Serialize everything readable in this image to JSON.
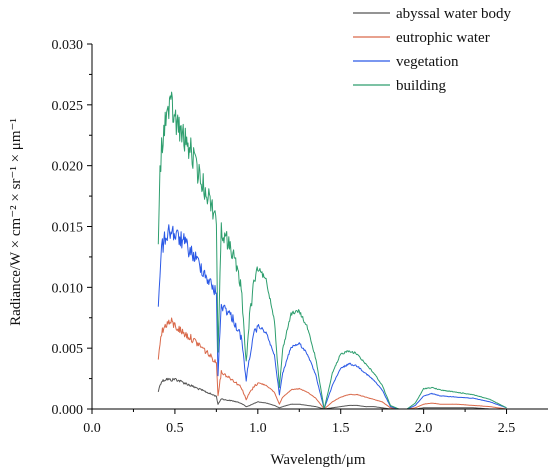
{
  "chart_data": {
    "type": "line",
    "xlabel": "Wavelength/μm",
    "ylabel": "Radiance/W × cm⁻² × sr⁻¹ × μm⁻¹",
    "xlim": [
      0.0,
      2.75
    ],
    "ylim": [
      0.0,
      0.03
    ],
    "xticks": [
      "0.0",
      "0.5",
      "1.0",
      "1.5",
      "2.0",
      "2.5"
    ],
    "yticks": [
      "0.000",
      "0.005",
      "0.010",
      "0.015",
      "0.020",
      "0.025",
      "0.030"
    ],
    "legend_position": "top-right",
    "grid": false,
    "x": [
      0.4,
      0.41,
      0.42,
      0.45,
      0.48,
      0.5,
      0.55,
      0.6,
      0.65,
      0.7,
      0.75,
      0.76,
      0.78,
      0.8,
      0.85,
      0.9,
      0.93,
      0.95,
      0.98,
      1.0,
      1.05,
      1.1,
      1.13,
      1.15,
      1.2,
      1.25,
      1.3,
      1.35,
      1.4,
      1.45,
      1.5,
      1.55,
      1.6,
      1.65,
      1.7,
      1.75,
      1.8,
      1.85,
      1.9,
      1.95,
      2.0,
      2.05,
      2.1,
      2.2,
      2.3,
      2.4,
      2.5
    ],
    "series": [
      {
        "name": "abyssal water body",
        "color": "#555555",
        "values": [
          0.0015,
          0.0021,
          0.0024,
          0.0026,
          0.0025,
          0.0026,
          0.0023,
          0.002,
          0.0017,
          0.0014,
          0.0011,
          0.0004,
          0.0009,
          0.0008,
          0.0007,
          0.0005,
          0.0002,
          0.0003,
          0.0005,
          0.0006,
          0.0005,
          0.0003,
          0.0001,
          0.0002,
          0.0004,
          0.0004,
          0.0003,
          0.0002,
          0.0,
          0.0001,
          0.0002,
          0.0003,
          0.0003,
          0.0002,
          0.0002,
          0.0001,
          0.0,
          0.0,
          0.0,
          0.0,
          0.0001,
          0.0001,
          0.0001,
          0.0001,
          0.0001,
          0.0,
          0.0
        ]
      },
      {
        "name": "eutrophic water",
        "color": "#d9694a",
        "values": [
          0.0045,
          0.0058,
          0.0066,
          0.0074,
          0.0075,
          0.0072,
          0.0066,
          0.0061,
          0.0055,
          0.0048,
          0.004,
          0.0012,
          0.0032,
          0.003,
          0.0025,
          0.0019,
          0.0008,
          0.0014,
          0.002,
          0.0022,
          0.002,
          0.0014,
          0.0004,
          0.001,
          0.0016,
          0.0017,
          0.0014,
          0.0009,
          0.0,
          0.0006,
          0.001,
          0.0012,
          0.0012,
          0.001,
          0.0008,
          0.0006,
          0.0001,
          0.0,
          0.0,
          0.0001,
          0.0004,
          0.0005,
          0.0004,
          0.0004,
          0.0003,
          0.0002,
          0.0
        ]
      },
      {
        "name": "vegetation",
        "color": "#2b59e6",
        "values": [
          0.0085,
          0.012,
          0.0138,
          0.0152,
          0.0155,
          0.015,
          0.0145,
          0.0135,
          0.0125,
          0.0112,
          0.01,
          0.003,
          0.009,
          0.0088,
          0.0078,
          0.0062,
          0.0025,
          0.0045,
          0.0066,
          0.007,
          0.0064,
          0.0045,
          0.0012,
          0.003,
          0.0052,
          0.0055,
          0.0046,
          0.0028,
          0.0,
          0.002,
          0.0034,
          0.0038,
          0.0036,
          0.003,
          0.0024,
          0.0016,
          0.0002,
          0.0,
          0.0,
          0.0003,
          0.0011,
          0.0013,
          0.0011,
          0.001,
          0.0009,
          0.0006,
          0.0001
        ]
      },
      {
        "name": "building",
        "color": "#2e9e6e",
        "values": [
          0.014,
          0.02,
          0.023,
          0.0255,
          0.0262,
          0.025,
          0.0235,
          0.0222,
          0.02,
          0.0185,
          0.0165,
          0.005,
          0.0155,
          0.015,
          0.0135,
          0.0105,
          0.004,
          0.008,
          0.0112,
          0.0118,
          0.0108,
          0.0075,
          0.0018,
          0.005,
          0.008,
          0.0082,
          0.0068,
          0.0042,
          0.0,
          0.003,
          0.0046,
          0.0049,
          0.0046,
          0.0038,
          0.003,
          0.002,
          0.0003,
          0.0,
          0.0,
          0.0005,
          0.0017,
          0.0018,
          0.0016,
          0.0014,
          0.0012,
          0.0008,
          0.0001
        ]
      }
    ]
  }
}
